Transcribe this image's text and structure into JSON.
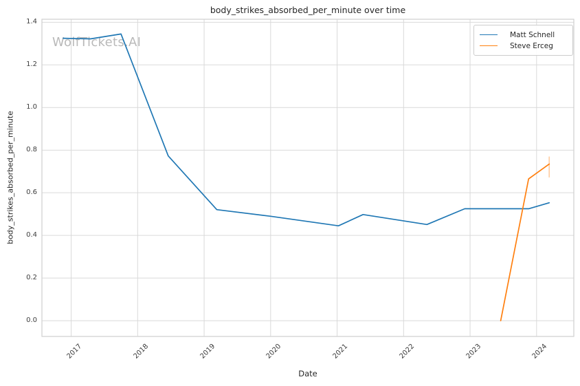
{
  "watermark": {
    "text": "WolfTickets.AI"
  },
  "chart_data": {
    "type": "line",
    "title": "body_strikes_absorbed_per_minute over time",
    "xlabel": "Date",
    "ylabel": "body_strikes_absorbed_per_minute",
    "grid": true,
    "legend_position": "upper right",
    "xlim": [
      2016.56,
      2024.56
    ],
    "ylim": [
      -0.074,
      1.414
    ],
    "x_ticks": [
      2017,
      2018,
      2019,
      2020,
      2021,
      2022,
      2023,
      2024
    ],
    "y_ticks": [
      "0.0",
      "0.2",
      "0.4",
      "0.6",
      "0.8",
      "1.0",
      "1.2",
      "1.4"
    ],
    "grid_color": "#d9d9d9",
    "spine_color": "#cfcfcf",
    "series": [
      {
        "name": "Matt Schnell",
        "color": "#1f77b4",
        "x": [
          2016.88,
          2017.29,
          2017.75,
          2018.46,
          2019.19,
          2020.0,
          2021.02,
          2021.39,
          2022.35,
          2022.92,
          2023.88,
          2024.19
        ],
        "values": [
          1.325,
          1.322,
          1.345,
          0.773,
          0.521,
          0.49,
          0.445,
          0.498,
          0.451,
          0.525,
          0.525,
          0.553
        ]
      },
      {
        "name": "Steve Erceg",
        "color": "#ff7f0e",
        "x": [
          2023.46,
          2023.88,
          2024.19
        ],
        "values": [
          0.0,
          0.665,
          0.735
        ],
        "error_bar_last": [
          0.672,
          0.77
        ]
      }
    ]
  }
}
